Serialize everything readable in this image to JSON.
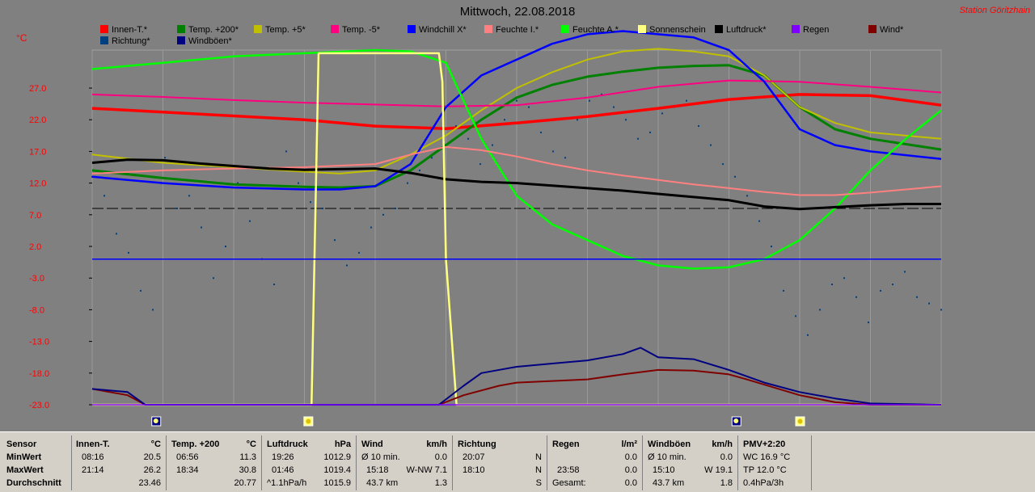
{
  "header": {
    "title": "Mittwoch, 22.08.2018",
    "station": "Station Göritzhain",
    "unit": "°C"
  },
  "legend": [
    {
      "label": "Innen-T.*",
      "color": "#ff0000"
    },
    {
      "label": "Temp. +200*",
      "color": "#008000"
    },
    {
      "label": "Temp. +5*",
      "color": "#c0c000"
    },
    {
      "label": "Temp. -5*",
      "color": "#ff0080"
    },
    {
      "label": "Windchill X*",
      "color": "#0000ff"
    },
    {
      "label": "Feuchte I.*",
      "color": "#ff8080"
    },
    {
      "label": "Feuchte A.*",
      "color": "#00ff00"
    },
    {
      "label": "Sonnenschein",
      "color": "#ffff80"
    },
    {
      "label": "Luftdruck*",
      "color": "#000000"
    },
    {
      "label": "Regen",
      "color": "#8000ff"
    },
    {
      "label": "Wind*",
      "color": "#800000"
    },
    {
      "label": "Richtung*",
      "color": "#004080"
    },
    {
      "label": "Windböen*",
      "color": "#000080"
    }
  ],
  "chart_data": {
    "type": "line",
    "ylim": [
      -23,
      33
    ],
    "yticks": [
      "27.0",
      "22.0",
      "17.0",
      "12.0",
      "7.0",
      "2.0",
      "-3.0",
      "-8.0",
      "-13.0",
      "-18.0",
      "-23.0"
    ],
    "xlim": [
      0,
      24
    ],
    "dashed_reference": 8.0,
    "series": [
      {
        "name": "Innen-T.*",
        "color": "#ff0000",
        "x": [
          0,
          2,
          4,
          6,
          8,
          10,
          12,
          14,
          16,
          18,
          20,
          22,
          24
        ],
        "y": [
          23.8,
          23.2,
          22.6,
          22.0,
          21.0,
          20.6,
          21.5,
          22.5,
          23.8,
          25.2,
          26.0,
          25.8,
          24.3
        ]
      },
      {
        "name": "Temp. +200*",
        "color": "#008000",
        "x": [
          0,
          2,
          4,
          6,
          7,
          8,
          9,
          10,
          11,
          12,
          13,
          14,
          15,
          16,
          17,
          18,
          19,
          20,
          21,
          22,
          24
        ],
        "y": [
          14.0,
          12.8,
          11.8,
          11.4,
          11.3,
          11.5,
          14.0,
          18.0,
          22.0,
          25.5,
          27.5,
          28.8,
          29.6,
          30.2,
          30.5,
          30.6,
          29.0,
          24.0,
          20.5,
          19.0,
          17.3
        ]
      },
      {
        "name": "Temp. +5*",
        "color": "#c0c000",
        "x": [
          0,
          2,
          4,
          6,
          7,
          8,
          9,
          10,
          11,
          12,
          13,
          14,
          15,
          16,
          17,
          18,
          19,
          20,
          21,
          22,
          24
        ],
        "y": [
          16.5,
          15.2,
          14.5,
          13.8,
          13.5,
          14.0,
          16.5,
          19.5,
          23.5,
          27.0,
          29.5,
          31.5,
          32.8,
          33.2,
          32.8,
          32.0,
          29.0,
          24.0,
          21.5,
          20.0,
          19.0
        ]
      },
      {
        "name": "Temp. -5*",
        "color": "#ff0080",
        "x": [
          0,
          2,
          4,
          6,
          8,
          10,
          12,
          14,
          16,
          18,
          20,
          22,
          24
        ],
        "y": [
          26.0,
          25.6,
          25.1,
          24.7,
          24.4,
          24.1,
          24.3,
          25.5,
          27.2,
          28.2,
          28.0,
          27.2,
          26.3
        ]
      },
      {
        "name": "Windchill X*",
        "color": "#0000ff",
        "x": [
          0,
          2,
          4,
          6,
          7,
          8,
          9,
          10,
          11,
          12,
          13,
          14,
          15,
          16,
          17,
          18,
          19,
          20,
          21,
          22,
          24
        ],
        "y": [
          13.0,
          12.0,
          11.3,
          11.0,
          11.0,
          11.5,
          15.0,
          24.0,
          29.0,
          31.5,
          34.0,
          35.5,
          36.0,
          35.5,
          35.0,
          33.0,
          28.0,
          20.5,
          18.0,
          17.0,
          15.8
        ]
      },
      {
        "name": "Feuchte A.*",
        "color": "#00ff00",
        "x": [
          0,
          2,
          4,
          6,
          8,
          9,
          10,
          11,
          12,
          13,
          14,
          15,
          16,
          17,
          18,
          19,
          20,
          21,
          22,
          23,
          24
        ],
        "y": [
          30.0,
          31.0,
          32.0,
          32.5,
          33.0,
          32.8,
          31.0,
          19.0,
          10.0,
          5.5,
          3.0,
          0.5,
          -1.0,
          -1.5,
          -1.3,
          0.0,
          3.0,
          8.0,
          14.0,
          19.0,
          23.5
        ]
      },
      {
        "name": "Feuchte I.*",
        "color": "#ff8080",
        "x": [
          0,
          2,
          4,
          6,
          8,
          9,
          10,
          11,
          12,
          13,
          14,
          15,
          16,
          17,
          18,
          19,
          20,
          21,
          22,
          23,
          24
        ],
        "y": [
          13.5,
          14.0,
          14.3,
          14.5,
          15.0,
          16.5,
          17.7,
          17.2,
          16.2,
          15.0,
          14.0,
          13.2,
          12.5,
          11.8,
          11.2,
          10.6,
          10.1,
          10.1,
          10.5,
          11.0,
          11.5
        ]
      },
      {
        "name": "Luftdruck*",
        "color": "#000000",
        "x": [
          0,
          1,
          2,
          3,
          4,
          5,
          6,
          7,
          8,
          9,
          10,
          11,
          12,
          13,
          14,
          15,
          16,
          17,
          18,
          19,
          20,
          21,
          22,
          23,
          24
        ],
        "y": [
          15.2,
          15.7,
          15.6,
          15.1,
          14.7,
          14.3,
          14.1,
          14.2,
          14.3,
          13.6,
          12.6,
          12.2,
          12.0,
          11.6,
          11.2,
          10.8,
          10.3,
          9.8,
          9.3,
          8.3,
          7.9,
          8.2,
          8.5,
          8.7,
          8.7
        ]
      },
      {
        "name": "Sonnenschein",
        "color": "#ffff80",
        "x": [
          0,
          6.2,
          6.4,
          9.8,
          9.9,
          10.0,
          10.3,
          24
        ],
        "y": [
          -23,
          -23,
          32.5,
          32.5,
          28.0,
          0.0,
          -23,
          -23
        ]
      },
      {
        "name": "Wind*",
        "color": "#800000",
        "x": [
          0,
          1,
          1.5,
          9.8,
          10.5,
          11.5,
          12,
          14,
          15,
          16,
          17,
          18,
          18.5,
          20,
          21,
          22,
          24
        ],
        "y": [
          -20.5,
          -21.5,
          -23,
          -23,
          -21.5,
          -20.0,
          -19.5,
          -19.0,
          -18.2,
          -17.5,
          -17.6,
          -18.2,
          -19.0,
          -21.5,
          -22.6,
          -23,
          -23
        ]
      },
      {
        "name": "Windböen*",
        "color": "#000080",
        "x": [
          0,
          1,
          1.5,
          9.8,
          10.5,
          11,
          12,
          13,
          14,
          15,
          15.5,
          16,
          17,
          18,
          19,
          20,
          21,
          22,
          24
        ],
        "y": [
          -20.5,
          -21.0,
          -23,
          -23,
          -20.0,
          -18.0,
          -17.0,
          -16.5,
          -16.0,
          -15.0,
          -14.0,
          -15.5,
          -15.8,
          -17.5,
          -19.5,
          -21.0,
          -22.0,
          -22.8,
          -23
        ]
      },
      {
        "name": "Regen",
        "color": "#8000ff",
        "x": [
          0,
          24
        ],
        "y": [
          -23,
          -23
        ]
      },
      {
        "name": "Nullinie",
        "color": "#0000ff",
        "x": [
          0,
          24
        ],
        "y": [
          0,
          0
        ]
      }
    ],
    "direction_points": {
      "color": "#004080",
      "y": [
        13,
        10,
        4,
        1,
        -5,
        -8,
        16,
        8,
        10,
        5,
        -3,
        2,
        12,
        6,
        0,
        -4,
        17,
        12,
        9,
        8,
        3,
        -1,
        1,
        5,
        7,
        8,
        12,
        14,
        16,
        18,
        21,
        19,
        15,
        18,
        22,
        25,
        24,
        20,
        17,
        16,
        22,
        25,
        26,
        24,
        22,
        19,
        20,
        23,
        24,
        25,
        21,
        18,
        15,
        13,
        10,
        6,
        2,
        -5,
        -9,
        -12,
        -8,
        -4,
        -3,
        -6,
        -10,
        -5,
        -4,
        -2,
        -6,
        -7,
        -8
      ]
    }
  },
  "bottom_icons": [
    {
      "name": "night-icon",
      "hour": 1.8
    },
    {
      "name": "sun-icon",
      "hour": 6.1
    },
    {
      "name": "night-icon",
      "hour": 18.2
    },
    {
      "name": "sun-icon",
      "hour": 20.0
    }
  ],
  "table": {
    "rows": [
      "Sensor",
      "MinWert",
      "MaxWert",
      "Durchschnitt"
    ],
    "innen": {
      "title": "Innen-T.",
      "unit": "°C",
      "min_time": "08:16",
      "min_val": "20.5",
      "max_time": "21:14",
      "max_val": "26.2",
      "avg": "23.46"
    },
    "temp200": {
      "title": "Temp. +200",
      "unit": "°C",
      "min_time": "06:56",
      "min_val": "11.3",
      "max_time": "18:34",
      "max_val": "30.8",
      "avg": "20.77"
    },
    "druck": {
      "title": "Luftdruck",
      "unit": "hPa",
      "min_time": "19:26",
      "min_val": "1012.9",
      "max_time": "01:46",
      "max_val": "1019.4",
      "trend": "^1.1hPa/h",
      "avg": "1015.9"
    },
    "wind": {
      "title": "Wind",
      "unit": "km/h",
      "r1a": "Ø 10 min.",
      "r1b": "0.0",
      "r2a": "15:18",
      "r2b": "W-NW 7.1",
      "r3a": "43.7 km",
      "r3b": "1.3"
    },
    "richtung": {
      "title": "Richtung",
      "r1a": "20:07",
      "r1b": "N",
      "r2a": "18:10",
      "r2b": "N",
      "r3b": "S"
    },
    "regen": {
      "title": "Regen",
      "unit": "l/m²",
      "r2a": "23:58",
      "r2b": "0.0",
      "r3a": "Gesamt:",
      "r3b": "0.0",
      "r1b": "0.0"
    },
    "boeen": {
      "title": "Windböen",
      "unit": "km/h",
      "r1a": "Ø 10 min.",
      "r1b": "0.0",
      "r2a": "15:10",
      "r2b": "W 19.1",
      "r3a": "43.7 km",
      "r3b": "1.8"
    },
    "pmv": {
      "title": "PMV+2:20",
      "r1": "WC 16.9 °C",
      "r2": "TP 12.0 °C",
      "r3": "0.4hPa/3h"
    }
  }
}
